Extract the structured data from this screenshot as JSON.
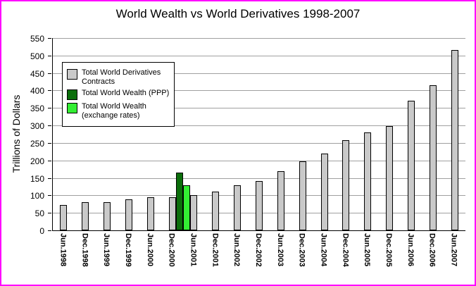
{
  "frame": {
    "border_color": "#ff00ff",
    "background": "#ffffff"
  },
  "chart_data": {
    "type": "bar",
    "title": "World Wealth vs World Derivatives 1998-2007",
    "xlabel": "",
    "ylabel": "Trillions of Dollars",
    "ylim": [
      0,
      550
    ],
    "ytick_step": 50,
    "grid": true,
    "legend_position": "top-left",
    "categories": [
      "Jun.1998",
      "Dec.1998",
      "Jun.1999",
      "Dec.1999",
      "Jun.2000",
      "Dec.2000",
      "Jun.2001",
      "Dec.2001",
      "Jun.2002",
      "Dec.2002",
      "Jun.2003",
      "Dec.2003",
      "Jun.2004",
      "Dec.2004",
      "Jun.2005",
      "Dec.2005",
      "Jun.2006",
      "Dec.2006",
      "Jun.2007"
    ],
    "series": [
      {
        "name": "Total World Derivatives Contracts",
        "color": "#c9c9c9",
        "values": [
          72,
          80,
          81,
          88,
          94,
          95,
          100,
          111,
          128,
          142,
          170,
          197,
          220,
          257,
          281,
          298,
          370,
          415,
          516
        ]
      },
      {
        "name": "Total World Wealth (PPP)",
        "color": "#0b6e0b",
        "values": [
          null,
          null,
          null,
          null,
          null,
          165,
          null,
          null,
          null,
          null,
          null,
          null,
          null,
          null,
          null,
          null,
          null,
          null,
          null
        ]
      },
      {
        "name": "Total World Wealth (exchange rates)",
        "color": "#33ee33",
        "values": [
          null,
          null,
          null,
          null,
          null,
          128,
          null,
          null,
          null,
          null,
          null,
          null,
          null,
          null,
          null,
          null,
          null,
          null,
          null
        ]
      }
    ]
  }
}
